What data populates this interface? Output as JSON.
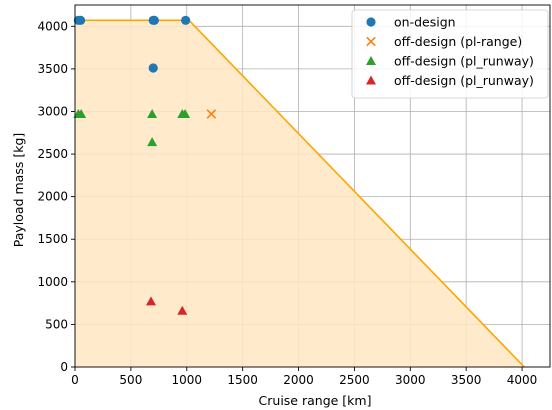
{
  "chart_data": {
    "type": "scatter",
    "title": "",
    "xlabel": "Cruise range [km]",
    "ylabel": "Payload mass [kg]",
    "xlim": [
      0,
      4250
    ],
    "ylim": [
      0,
      4250
    ],
    "xticks": [
      0,
      500,
      1000,
      1500,
      2000,
      2500,
      3000,
      3500,
      4000
    ],
    "yticks": [
      0,
      500,
      1000,
      1500,
      2000,
      2500,
      3000,
      3500,
      4000
    ],
    "grid": true,
    "legend_position": "top-right",
    "envelope": {
      "color": "#ffa500",
      "fill": "#ffe8c2",
      "points": [
        [
          0,
          4070
        ],
        [
          1020,
          4070
        ],
        [
          4020,
          0
        ],
        [
          0,
          0
        ]
      ]
    },
    "series": [
      {
        "name": "on-design",
        "marker": "circle",
        "color": "#1f77b4",
        "points": [
          [
            30,
            4070
          ],
          [
            50,
            4070
          ],
          [
            700,
            4070
          ],
          [
            710,
            4070
          ],
          [
            990,
            4070
          ],
          [
            700,
            3510
          ]
        ]
      },
      {
        "name": "off-design (pl-range)",
        "marker": "x",
        "color": "#ff7f0e",
        "points": [
          [
            1220,
            2970
          ]
        ]
      },
      {
        "name": "off-design (pl_runway)",
        "marker": "triangle",
        "color": "#2ca02c",
        "points": [
          [
            30,
            2970
          ],
          [
            55,
            2970
          ],
          [
            690,
            2970
          ],
          [
            960,
            2970
          ],
          [
            985,
            2970
          ],
          [
            690,
            2640
          ]
        ]
      },
      {
        "name": "off-design (pl_runway)",
        "marker": "triangle",
        "color": "#d62728",
        "points": [
          [
            680,
            770
          ],
          [
            960,
            660
          ]
        ]
      }
    ]
  }
}
